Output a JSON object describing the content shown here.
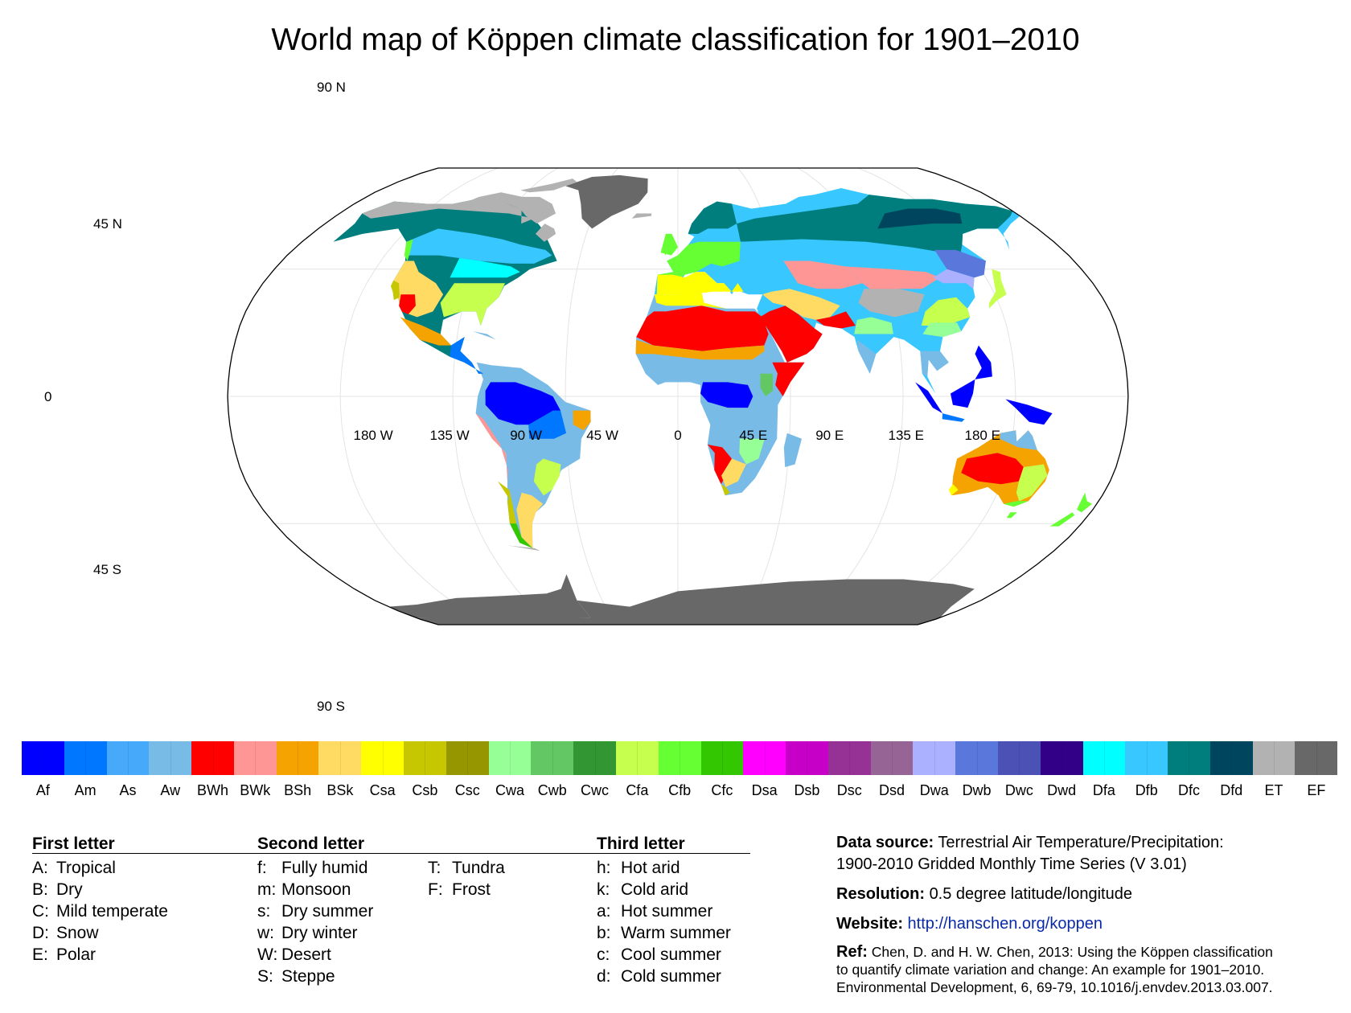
{
  "title": "World map of Köppen climate classification for 1901–2010",
  "map": {
    "lat_labels": [
      {
        "text": "90 N",
        "lat": 90
      },
      {
        "text": "45 N",
        "lat": 45
      },
      {
        "text": "0",
        "lat": 0
      },
      {
        "text": "45 S",
        "lat": -45
      },
      {
        "text": "90 S",
        "lat": -90
      }
    ],
    "lon_labels": [
      {
        "text": "180 W",
        "lon": -180
      },
      {
        "text": "135 W",
        "lon": -135
      },
      {
        "text": "90 W",
        "lon": -90
      },
      {
        "text": "45 W",
        "lon": -45
      },
      {
        "text": "0",
        "lon": 0
      },
      {
        "text": "45 E",
        "lon": 45
      },
      {
        "text": "90 E",
        "lon": 90
      },
      {
        "text": "135 E",
        "lon": 135
      },
      {
        "text": "180 E",
        "lon": 180
      }
    ],
    "colors": {
      "ocean": "#ffffff",
      "graticule": "#e4e4e4",
      "outline": "#000000"
    }
  },
  "legend": {
    "classes": [
      {
        "code": "Af",
        "color": "#0000fe"
      },
      {
        "code": "Am",
        "color": "#0077ff"
      },
      {
        "code": "As",
        "color": "#46a9fa"
      },
      {
        "code": "Aw",
        "color": "#79bbe7"
      },
      {
        "code": "BWh",
        "color": "#fe0000"
      },
      {
        "code": "BWk",
        "color": "#fe9695"
      },
      {
        "code": "BSh",
        "color": "#f5a301"
      },
      {
        "code": "BSk",
        "color": "#ffdb63"
      },
      {
        "code": "Csa",
        "color": "#ffff00"
      },
      {
        "code": "Csb",
        "color": "#c6c700"
      },
      {
        "code": "Csc",
        "color": "#969600"
      },
      {
        "code": "Cwa",
        "color": "#96ff96"
      },
      {
        "code": "Cwb",
        "color": "#63c764"
      },
      {
        "code": "Cwc",
        "color": "#329633"
      },
      {
        "code": "Cfa",
        "color": "#c6ff4e"
      },
      {
        "code": "Cfb",
        "color": "#66ff33"
      },
      {
        "code": "Cfc",
        "color": "#33c701"
      },
      {
        "code": "Dsa",
        "color": "#ff00fe"
      },
      {
        "code": "Dsb",
        "color": "#c600c7"
      },
      {
        "code": "Dsc",
        "color": "#963295"
      },
      {
        "code": "Dsd",
        "color": "#966495"
      },
      {
        "code": "Dwa",
        "color": "#abb1ff"
      },
      {
        "code": "Dwb",
        "color": "#5a77db"
      },
      {
        "code": "Dwc",
        "color": "#4c51b5"
      },
      {
        "code": "Dwd",
        "color": "#320087"
      },
      {
        "code": "Dfa",
        "color": "#00ffff"
      },
      {
        "code": "Dfb",
        "color": "#38c7ff"
      },
      {
        "code": "Dfc",
        "color": "#007e7d"
      },
      {
        "code": "Dfd",
        "color": "#00455e"
      },
      {
        "code": "ET",
        "color": "#b2b2b2"
      },
      {
        "code": "EF",
        "color": "#686868"
      }
    ],
    "first_letter": {
      "heading": "First letter",
      "items": [
        {
          "k": "A:",
          "v": "Tropical"
        },
        {
          "k": "B:",
          "v": "Dry"
        },
        {
          "k": "C:",
          "v": "Mild temperate"
        },
        {
          "k": "D:",
          "v": "Snow"
        },
        {
          "k": "E:",
          "v": "Polar"
        }
      ]
    },
    "second_letter": {
      "heading": "Second letter",
      "items": [
        {
          "k": "f:",
          "v": "Fully humid"
        },
        {
          "k": "m:",
          "v": "Monsoon"
        },
        {
          "k": "s:",
          "v": "Dry summer"
        },
        {
          "k": "w:",
          "v": "Dry winter"
        },
        {
          "k": "W:",
          "v": "Desert"
        },
        {
          "k": "S:",
          "v": "Steppe"
        }
      ],
      "extra": [
        {
          "k": "T:",
          "v": "Tundra"
        },
        {
          "k": "F:",
          "v": "Frost"
        }
      ]
    },
    "third_letter": {
      "heading": "Third letter",
      "items": [
        {
          "k": "h:",
          "v": "Hot arid"
        },
        {
          "k": "k:",
          "v": "Cold arid"
        },
        {
          "k": "a:",
          "v": "Hot summer"
        },
        {
          "k": "b:",
          "v": "Warm summer"
        },
        {
          "k": "c:",
          "v": "Cool summer"
        },
        {
          "k": "d:",
          "v": "Cold summer"
        }
      ]
    }
  },
  "info": {
    "data_source_label": "Data source:",
    "data_source_line1": "Terrestrial Air Temperature/Precipitation:",
    "data_source_line2": "1900-2010 Gridded Monthly Time Series (V 3.01)",
    "resolution_label": "Resolution:",
    "resolution_value": "0.5 degree latitude/longitude",
    "website_label": "Website:",
    "website_url": "http://hanschen.org/koppen",
    "ref_label": "Ref:",
    "ref_line1": "Chen, D. and H. W. Chen, 2013: Using the Köppen classification",
    "ref_line2": "to quantify climate variation and change: An example for 1901–2010.",
    "ref_line3": "Environmental Development, 6, 69-79, 10.1016/j.envdev.2013.03.007."
  }
}
